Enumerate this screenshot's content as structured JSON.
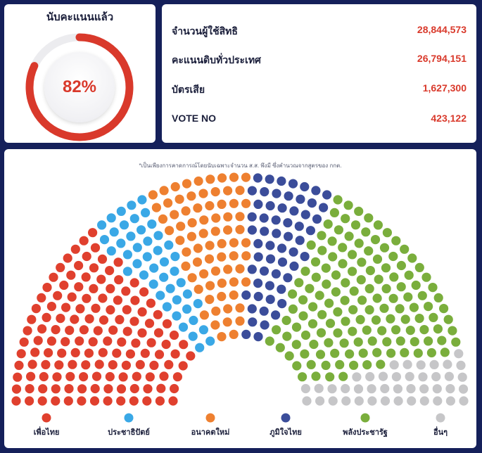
{
  "progress": {
    "title": "นับคะแนนแล้ว",
    "percent": 82,
    "label": "82%"
  },
  "stats": [
    {
      "label": "จำนวนผู้ใช้สิทธิ",
      "value": "28,844,573"
    },
    {
      "label": "คะแนนดิบทั่วประเทศ",
      "value": "26,794,151"
    },
    {
      "label": "บัตรเสีย",
      "value": "1,627,300"
    },
    {
      "label": "VOTE NO",
      "value": "423,122"
    }
  ],
  "footnote": "*เป็นเพียงการคาดการณ์โดยนับเฉพาะจำนวน ส.ส. พึงมี ซึ่งคำนวณจากสูตรของ กกต.",
  "chart_data": {
    "type": "parliament",
    "total_seats": 500,
    "series": [
      {
        "name": "เพื่อไทย",
        "seats": 140,
        "color": "#e0402e"
      },
      {
        "name": "ประชาธิปัตย์",
        "seats": 46,
        "color": "#3aa8e6"
      },
      {
        "name": "อนาคตใหม่",
        "seats": 72,
        "color": "#ee8030"
      },
      {
        "name": "ภูมิใจไทย",
        "seats": 58,
        "color": "#3b4d9a"
      },
      {
        "name": "พลังประชารัฐ",
        "seats": 142,
        "color": "#7aae3c"
      },
      {
        "name": "อื่นๆ",
        "seats": 42,
        "color": "#c6c6c8"
      }
    ]
  }
}
